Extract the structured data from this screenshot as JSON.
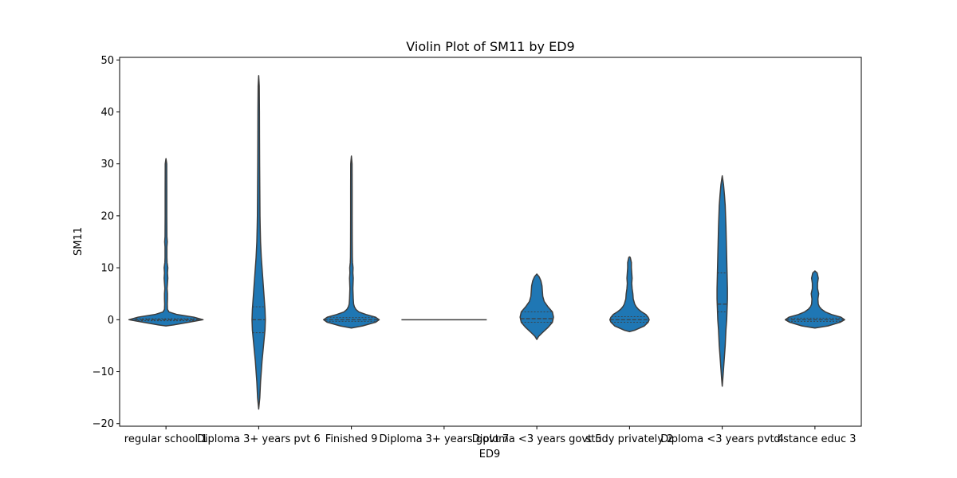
{
  "chart_data": {
    "type": "violin",
    "title": "Violin Plot of SM11 by ED9",
    "xlabel": "ED9",
    "ylabel": "SM11",
    "ylim": [
      -20.5,
      50.5
    ],
    "yticks": [
      -20,
      -10,
      0,
      10,
      20,
      30,
      40,
      50
    ],
    "ytick_labels": [
      "−20",
      "−10",
      "0",
      "10",
      "20",
      "30",
      "40",
      "50"
    ],
    "categories": [
      "regular school 1",
      "Diploma 3+ years pvt 6",
      "Finished 9",
      "Diploma 3+ years govt 7",
      "Diploma <3 years govt 5",
      "study privately 2",
      "Diploma <3 years pvt 4",
      "distance educ 3"
    ],
    "violin_color": "#1f77b4",
    "edge_color": "#3d3d3d",
    "violins": [
      {
        "category": "regular school 1",
        "min": -1.2,
        "max": 31,
        "median": 0,
        "quartiles": [
          -0.2,
          0,
          0.2
        ],
        "profile": [
          [
            -1.2,
            0.0
          ],
          [
            -1,
            0.2
          ],
          [
            -0.5,
            0.6
          ],
          [
            0,
            1.0
          ],
          [
            0.5,
            0.75
          ],
          [
            1,
            0.3
          ],
          [
            1.5,
            0.08
          ],
          [
            2,
            0.04
          ],
          [
            3,
            0.035
          ],
          [
            4,
            0.04
          ],
          [
            5,
            0.04
          ],
          [
            6,
            0.03
          ],
          [
            7,
            0.04
          ],
          [
            8,
            0.05
          ],
          [
            9,
            0.04
          ],
          [
            10,
            0.05
          ],
          [
            11,
            0.03
          ],
          [
            12,
            0.025
          ],
          [
            14,
            0.025
          ],
          [
            15,
            0.035
          ],
          [
            16,
            0.025
          ],
          [
            20,
            0.022
          ],
          [
            25,
            0.022
          ],
          [
            30,
            0.02
          ],
          [
            31,
            0.0
          ]
        ]
      },
      {
        "category": "Diploma 3+ years pvt 6",
        "min": -17.2,
        "max": 47,
        "median": 0,
        "quartiles": [
          -2.5,
          0,
          2.5
        ],
        "profile": [
          [
            -17.2,
            0.0
          ],
          [
            -15,
            0.03
          ],
          [
            -12,
            0.05
          ],
          [
            -10,
            0.07
          ],
          [
            -8,
            0.09
          ],
          [
            -5,
            0.13
          ],
          [
            -2,
            0.17
          ],
          [
            0,
            0.18
          ],
          [
            2,
            0.17
          ],
          [
            5,
            0.14
          ],
          [
            8,
            0.11
          ],
          [
            10,
            0.09
          ],
          [
            12,
            0.07
          ],
          [
            15,
            0.05
          ],
          [
            18,
            0.04
          ],
          [
            20,
            0.035
          ],
          [
            25,
            0.03
          ],
          [
            30,
            0.025
          ],
          [
            35,
            0.022
          ],
          [
            40,
            0.02
          ],
          [
            45,
            0.015
          ],
          [
            47,
            0.0
          ]
        ]
      },
      {
        "category": "Finished 9",
        "min": -1.6,
        "max": 31.5,
        "median": 0,
        "quartiles": [
          -0.3,
          0,
          0.4
        ],
        "profile": [
          [
            -1.6,
            0.0
          ],
          [
            -1.2,
            0.3
          ],
          [
            -0.5,
            0.65
          ],
          [
            0,
            0.75
          ],
          [
            0.5,
            0.65
          ],
          [
            1,
            0.4
          ],
          [
            1.5,
            0.2
          ],
          [
            2,
            0.12
          ],
          [
            2.5,
            0.08
          ],
          [
            3,
            0.06
          ],
          [
            4,
            0.05
          ],
          [
            5,
            0.045
          ],
          [
            6,
            0.04
          ],
          [
            7,
            0.045
          ],
          [
            8,
            0.05
          ],
          [
            9,
            0.04
          ],
          [
            10,
            0.045
          ],
          [
            11,
            0.03
          ],
          [
            12,
            0.025
          ],
          [
            15,
            0.022
          ],
          [
            20,
            0.02
          ],
          [
            25,
            0.02
          ],
          [
            30,
            0.018
          ],
          [
            31.5,
            0.0
          ]
        ]
      },
      {
        "category": "Diploma 3+ years govt 7",
        "min": 0,
        "max": 0,
        "median": 0,
        "quartiles": [
          0,
          0,
          0
        ],
        "profile": []
      },
      {
        "category": "Diploma <3 years govt 5",
        "min": -3.8,
        "max": 8.8,
        "median": 0.2,
        "quartiles": [
          -0.5,
          0.2,
          1.5
        ],
        "profile": [
          [
            -3.8,
            0.0
          ],
          [
            -3.2,
            0.05
          ],
          [
            -2.5,
            0.15
          ],
          [
            -1.5,
            0.3
          ],
          [
            -0.5,
            0.42
          ],
          [
            0.5,
            0.45
          ],
          [
            1.5,
            0.42
          ],
          [
            2.5,
            0.3
          ],
          [
            3.5,
            0.2
          ],
          [
            4.5,
            0.16
          ],
          [
            5.5,
            0.15
          ],
          [
            6.5,
            0.14
          ],
          [
            7.5,
            0.11
          ],
          [
            8.3,
            0.06
          ],
          [
            8.8,
            0.0
          ]
        ]
      },
      {
        "category": "study privately 2",
        "min": -2.3,
        "max": 12.1,
        "median": 0,
        "quartiles": [
          -0.5,
          0,
          0.6
        ],
        "profile": [
          [
            -2.3,
            0.0
          ],
          [
            -2,
            0.15
          ],
          [
            -1.2,
            0.4
          ],
          [
            -0.5,
            0.5
          ],
          [
            0,
            0.53
          ],
          [
            0.5,
            0.5
          ],
          [
            1,
            0.44
          ],
          [
            1.5,
            0.33
          ],
          [
            2,
            0.24
          ],
          [
            2.5,
            0.18
          ],
          [
            3,
            0.14
          ],
          [
            4,
            0.1
          ],
          [
            5,
            0.09
          ],
          [
            6,
            0.07
          ],
          [
            7,
            0.06
          ],
          [
            8,
            0.07
          ],
          [
            9,
            0.06
          ],
          [
            10,
            0.05
          ],
          [
            11,
            0.05
          ],
          [
            12,
            0.02
          ],
          [
            12.1,
            0.0
          ]
        ]
      },
      {
        "category": "Diploma <3 years pvt 4",
        "min": -12.8,
        "max": 27.7,
        "median": 3,
        "quartiles": [
          1.5,
          3,
          9
        ],
        "profile": [
          [
            -12.8,
            0.0
          ],
          [
            -11,
            0.02
          ],
          [
            -8,
            0.05
          ],
          [
            -5,
            0.08
          ],
          [
            -2,
            0.1
          ],
          [
            0,
            0.12
          ],
          [
            2,
            0.13
          ],
          [
            4,
            0.14
          ],
          [
            6,
            0.14
          ],
          [
            9,
            0.13
          ],
          [
            12,
            0.12
          ],
          [
            15,
            0.11
          ],
          [
            18,
            0.1
          ],
          [
            20,
            0.09
          ],
          [
            22,
            0.08
          ],
          [
            24,
            0.06
          ],
          [
            26,
            0.035
          ],
          [
            27.7,
            0.0
          ]
        ]
      },
      {
        "category": "distance educ 3",
        "min": -1.6,
        "max": 9.4,
        "median": 0,
        "quartiles": [
          -0.3,
          0,
          0.3
        ],
        "profile": [
          [
            -1.6,
            0.0
          ],
          [
            -1.2,
            0.35
          ],
          [
            -0.5,
            0.68
          ],
          [
            0,
            0.8
          ],
          [
            0.5,
            0.7
          ],
          [
            1,
            0.45
          ],
          [
            1.5,
            0.28
          ],
          [
            2,
            0.18
          ],
          [
            2.5,
            0.12
          ],
          [
            3,
            0.09
          ],
          [
            4,
            0.08
          ],
          [
            5,
            0.1
          ],
          [
            6,
            0.07
          ],
          [
            7,
            0.07
          ],
          [
            8,
            0.09
          ],
          [
            9,
            0.06
          ],
          [
            9.4,
            0.0
          ]
        ]
      }
    ]
  }
}
